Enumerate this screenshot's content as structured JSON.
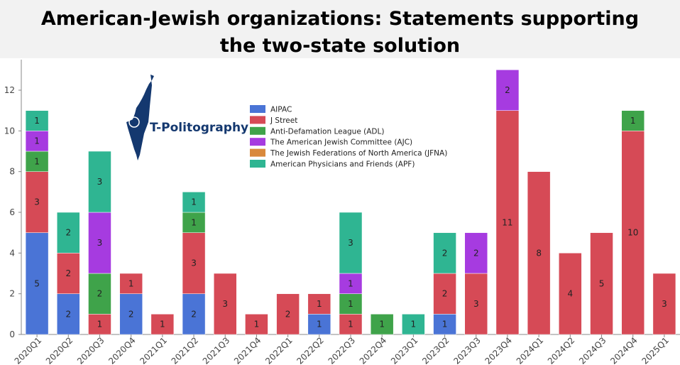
{
  "chart_data": {
    "type": "bar",
    "stacked": true,
    "title": "American-Jewish organizations: Statements supporting the two-state solution",
    "xlabel": "",
    "ylabel": "",
    "ylim": [
      0,
      13.5
    ],
    "yticks": [
      0,
      2,
      4,
      6,
      8,
      10,
      12
    ],
    "grid": false,
    "legend_position": "top-left",
    "categories": [
      "2020Q1",
      "2020Q2",
      "2020Q3",
      "2020Q4",
      "2021Q1",
      "2021Q2",
      "2021Q3",
      "2021Q4",
      "2022Q1",
      "2022Q2",
      "2022Q3",
      "2022Q4",
      "2023Q1",
      "2023Q2",
      "2023Q3",
      "2023Q4",
      "2024Q1",
      "2024Q2",
      "2024Q3",
      "2024Q4",
      "2025Q1"
    ],
    "series": [
      {
        "name": "AIPAC",
        "color": "#4a74d6",
        "values": [
          5,
          2,
          0,
          2,
          0,
          2,
          0,
          0,
          0,
          1,
          0,
          0,
          0,
          1,
          0,
          0,
          0,
          0,
          0,
          0,
          0
        ]
      },
      {
        "name": "J Street",
        "color": "#d64a56",
        "values": [
          3,
          2,
          1,
          1,
          1,
          3,
          3,
          1,
          2,
          1,
          1,
          0,
          0,
          2,
          3,
          11,
          8,
          4,
          5,
          10,
          3
        ]
      },
      {
        "name": "Anti-Defamation League (ADL)",
        "color": "#3fa34a",
        "values": [
          1,
          0,
          2,
          0,
          0,
          1,
          0,
          0,
          0,
          0,
          1,
          1,
          0,
          0,
          0,
          0,
          0,
          0,
          0,
          1,
          0
        ]
      },
      {
        "name": "The American Jewish Committee (AJC)",
        "color": "#a63be0",
        "values": [
          1,
          0,
          3,
          0,
          0,
          0,
          0,
          0,
          0,
          0,
          1,
          0,
          0,
          0,
          2,
          2,
          0,
          0,
          0,
          0,
          0
        ]
      },
      {
        "name": "The Jewish Federations of North America (JFNA)",
        "color": "#d9893c",
        "values": [
          0,
          0,
          0,
          0,
          0,
          0,
          0,
          0,
          0,
          0,
          0,
          0,
          0,
          0,
          0,
          0,
          0,
          0,
          0,
          0,
          0
        ]
      },
      {
        "name": "American Physicians and Friends (APF)",
        "color": "#2fb592",
        "values": [
          1,
          2,
          3,
          0,
          0,
          1,
          0,
          0,
          0,
          0,
          3,
          0,
          1,
          2,
          0,
          0,
          0,
          0,
          0,
          0,
          0
        ]
      }
    ]
  },
  "logo": {
    "text": "T-Politography",
    "color": "#14386f"
  }
}
